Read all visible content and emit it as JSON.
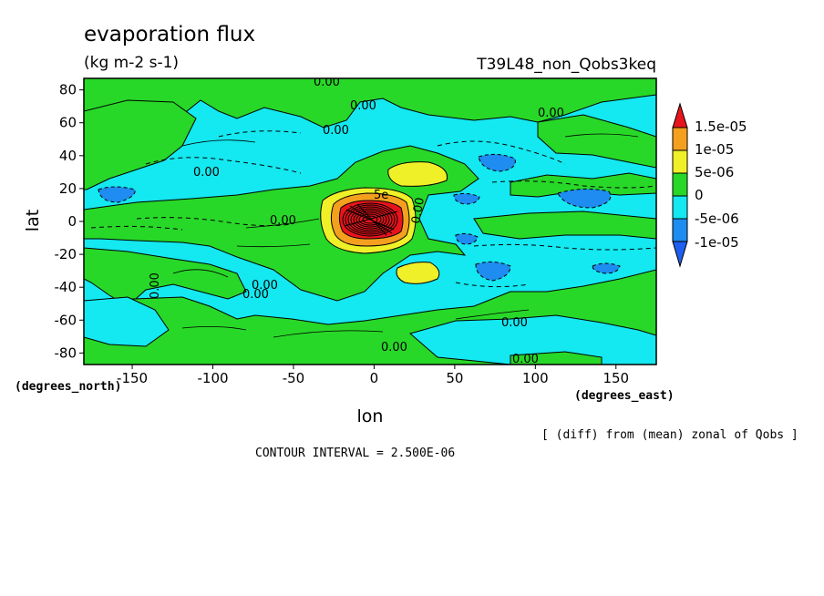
{
  "chart_data": {
    "type": "heatmap",
    "title": "evaporation flux",
    "subtitle": "(kg m-2 s-1)",
    "run_label": "T39L48_non_Qobs3keq",
    "xlabel": "lon",
    "ylabel": "lat",
    "x_units": "(degrees_east)",
    "y_units": "(degrees_north)",
    "xlim": [
      -180,
      175
    ],
    "ylim": [
      -87,
      87
    ],
    "x_ticks": [
      "-150",
      "-100",
      "-50",
      "0",
      "50",
      "100",
      "150"
    ],
    "x_tick_values": [
      -150,
      -100,
      -50,
      0,
      50,
      100,
      150
    ],
    "y_ticks": [
      "80",
      "60",
      "40",
      "20",
      "0",
      "-20",
      "-40",
      "-60",
      "-80"
    ],
    "y_tick_values": [
      80,
      60,
      40,
      20,
      0,
      -20,
      -40,
      -60,
      -80
    ],
    "colorbar": {
      "labels": [
        "1.5e-05",
        "1e-05",
        "5e-06",
        "0",
        "-5e-06",
        "-1e-05"
      ],
      "colors": [
        "#e8141c",
        "#f4a01e",
        "#f0f028",
        "#28d828",
        "#14e8f0",
        "#1e8cf0",
        "#1e5ef0"
      ]
    },
    "contour_interval_text": "CONTOUR INTERVAL = 2.500E-06",
    "diff_note": "[ (diff) from (mean) zonal of Qobs ]",
    "contour_labels": [
      "0.00",
      "0.00",
      "0.00",
      "0.00",
      "0.00",
      "0.00",
      "0.00",
      "0.00",
      "0.00",
      "0.00",
      "0.00",
      "0.00",
      "0.00",
      "5e"
    ],
    "colors": {
      "red": "#e8141c",
      "orange": "#f4a01e",
      "yellow": "#f0f028",
      "green": "#28d828",
      "cyan": "#14e8f0",
      "blue": "#1e8cf0"
    }
  }
}
